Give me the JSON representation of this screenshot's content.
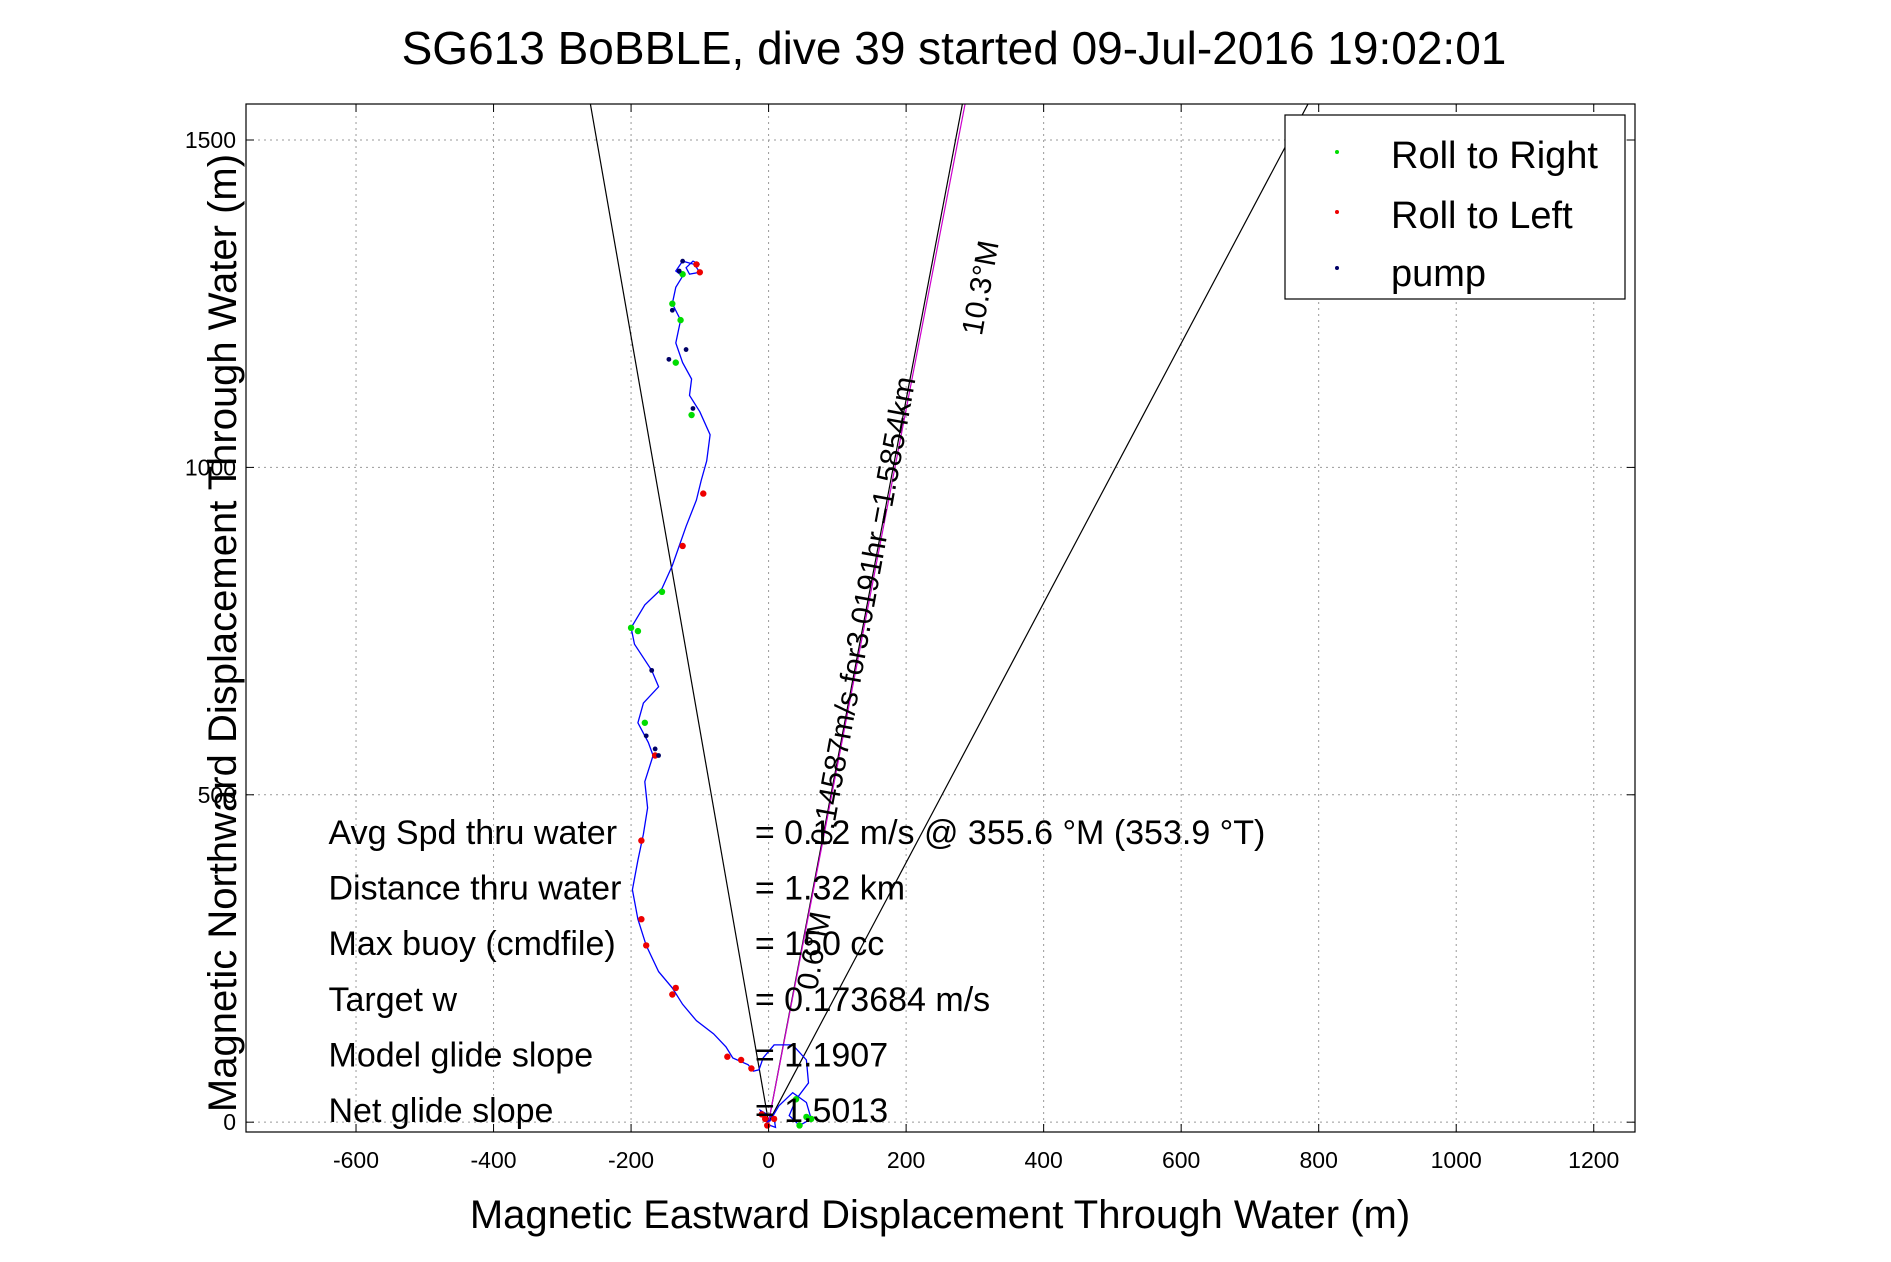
{
  "chart_data": {
    "type": "line",
    "title": "SG613 BoBBLE, dive 39 started 09-Jul-2016 19:02:01",
    "xlabel": "Magnetic Eastward Displacement Through Water (m)",
    "ylabel": "Magnetic Northward Displacement Through Water (m)",
    "xlim": [
      -760,
      1260
    ],
    "ylim": [
      -15,
      1555
    ],
    "xticks": [
      -600,
      -400,
      -200,
      0,
      200,
      400,
      600,
      800,
      1000,
      1200
    ],
    "yticks": [
      0,
      500,
      1000,
      1500
    ],
    "grid": true,
    "legend_position": "top-right",
    "legend": [
      {
        "label": "Roll to Right",
        "color": "#00dd00"
      },
      {
        "label": "Roll to Left",
        "color": "#ee0000"
      },
      {
        "label": "pump",
        "color": "#000066"
      }
    ],
    "track": {
      "name": "glider track",
      "color": "#0000ff",
      "points": [
        [
          0,
          0
        ],
        [
          -8,
          8
        ],
        [
          -12,
          18
        ],
        [
          -2,
          12
        ],
        [
          8,
          6
        ],
        [
          10,
          -8
        ],
        [
          0,
          -4
        ],
        [
          -6,
          6
        ],
        [
          2,
          2
        ],
        [
          15,
          25
        ],
        [
          35,
          45
        ],
        [
          55,
          30
        ],
        [
          62,
          5
        ],
        [
          45,
          -5
        ],
        [
          30,
          10
        ],
        [
          40,
          35
        ],
        [
          58,
          60
        ],
        [
          55,
          95
        ],
        [
          35,
          118
        ],
        [
          8,
          118
        ],
        [
          -8,
          98
        ],
        [
          -14,
          80
        ],
        [
          -22,
          78
        ],
        [
          -30,
          88
        ],
        [
          -52,
          98
        ],
        [
          -62,
          115
        ],
        [
          -80,
          135
        ],
        [
          -105,
          155
        ],
        [
          -125,
          180
        ],
        [
          -140,
          205
        ],
        [
          -160,
          230
        ],
        [
          -178,
          270
        ],
        [
          -190,
          310
        ],
        [
          -198,
          355
        ],
        [
          -190,
          400
        ],
        [
          -182,
          440
        ],
        [
          -176,
          480
        ],
        [
          -180,
          520
        ],
        [
          -168,
          560
        ],
        [
          -175,
          580
        ],
        [
          -190,
          610
        ],
        [
          -182,
          640
        ],
        [
          -160,
          665
        ],
        [
          -170,
          690
        ],
        [
          -195,
          730
        ],
        [
          -200,
          755
        ],
        [
          -180,
          790
        ],
        [
          -155,
          815
        ],
        [
          -140,
          850
        ],
        [
          -130,
          880
        ],
        [
          -120,
          910
        ],
        [
          -105,
          950
        ],
        [
          -98,
          980
        ],
        [
          -90,
          1010
        ],
        [
          -85,
          1050
        ],
        [
          -100,
          1085
        ],
        [
          -115,
          1110
        ],
        [
          -112,
          1135
        ],
        [
          -125,
          1160
        ],
        [
          -135,
          1190
        ],
        [
          -128,
          1225
        ],
        [
          -140,
          1250
        ],
        [
          -135,
          1275
        ],
        [
          -125,
          1292
        ],
        [
          -135,
          1300
        ],
        [
          -125,
          1315
        ],
        [
          -108,
          1310
        ],
        [
          -100,
          1298
        ],
        [
          -115,
          1295
        ],
        [
          -120,
          1305
        ],
        [
          -110,
          1315
        ],
        [
          -100,
          1310
        ]
      ]
    },
    "roll_right_points": [
      [
        45,
        -5
      ],
      [
        55,
        8
      ],
      [
        62,
        5
      ],
      [
        40,
        35
      ],
      [
        -125,
        1295
      ],
      [
        -140,
        1250
      ],
      [
        -128,
        1225
      ],
      [
        -135,
        1160
      ],
      [
        -112,
        1080
      ],
      [
        -200,
        755
      ],
      [
        -190,
        750
      ],
      [
        -180,
        610
      ],
      [
        -155,
        810
      ]
    ],
    "roll_left_points": [
      [
        -5,
        5
      ],
      [
        -10,
        12
      ],
      [
        -2,
        -5
      ],
      [
        8,
        5
      ],
      [
        -40,
        95
      ],
      [
        -60,
        100
      ],
      [
        -25,
        82
      ],
      [
        -105,
        1310
      ],
      [
        -100,
        1298
      ],
      [
        -95,
        960
      ],
      [
        -125,
        880
      ],
      [
        -185,
        310
      ],
      [
        -178,
        270
      ],
      [
        -135,
        205
      ],
      [
        -140,
        195
      ],
      [
        -165,
        560
      ],
      [
        -185,
        430
      ]
    ],
    "pump_points": [
      [
        -130,
        1300
      ],
      [
        -125,
        1315
      ],
      [
        -140,
        1240
      ],
      [
        -110,
        1090
      ],
      [
        -170,
        690
      ],
      [
        -165,
        570
      ],
      [
        -160,
        560
      ],
      [
        -178,
        590
      ],
      [
        -145,
        1165
      ],
      [
        -120,
        1180
      ]
    ],
    "heading_lines": [
      {
        "from": [
          0,
          0
        ],
        "to": [
          -270,
          1620
        ],
        "color": "#000000"
      },
      {
        "from": [
          0,
          0
        ],
        "to": [
          1130,
          2240
        ],
        "color": "#000000"
      },
      {
        "from": [
          0,
          0
        ],
        "to": [
          290,
          1600
        ],
        "color": "#000000"
      },
      {
        "from": [
          0,
          0
        ],
        "to": [
          294,
          1600
        ],
        "color": "#cc00cc"
      }
    ],
    "annotations": [
      {
        "text": "Avg Spd thru water",
        "x": -640,
        "y": 425
      },
      {
        "text": "= 0.12 m/s @ 355.6 °M (353.9 °T)",
        "x": -20,
        "y": 425
      },
      {
        "text": "Distance thru water",
        "x": -640,
        "y": 340
      },
      {
        "text": "= 1.32 km",
        "x": -20,
        "y": 340
      },
      {
        "text": "Max buoy (cmdfile)",
        "x": -640,
        "y": 255
      },
      {
        "text": "= 150 cc",
        "x": -20,
        "y": 255
      },
      {
        "text": "Target w",
        "x": -640,
        "y": 170
      },
      {
        "text": "= 0.173684 m/s",
        "x": -20,
        "y": 170
      },
      {
        "text": "Model glide slope",
        "x": -640,
        "y": 85
      },
      {
        "text": "= 1.1907",
        "x": -20,
        "y": 85
      },
      {
        "text": "Net glide slope",
        "x": -640,
        "y": 0
      },
      {
        "text": "= 1.5013",
        "x": -20,
        "y": 0
      },
      {
        "text": "0.14587m/s for3.0191hr =1.5854km",
        "x": 90,
        "y": 420,
        "angle": -79.7
      },
      {
        "text": "10.3°M",
        "x": 310,
        "y": 1200,
        "angle": -79.7
      },
      {
        "text": "0.6°M",
        "x": 70,
        "y": 200,
        "angle": -79.7
      }
    ]
  }
}
